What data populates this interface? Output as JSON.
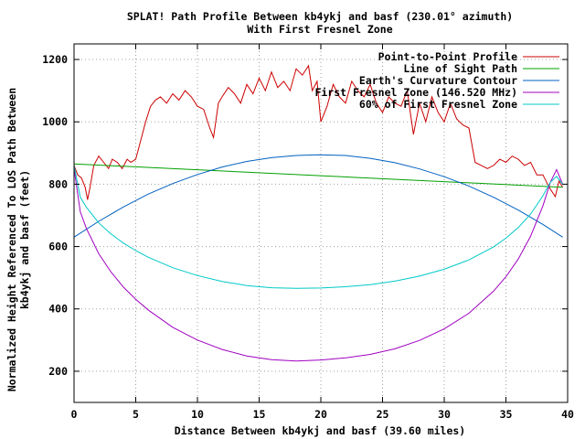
{
  "chart_data": {
    "type": "line",
    "title": "SPLAT! Path Profile Between kb4ykj and basf (230.01° azimuth)",
    "subtitle": "With First Fresnel Zone",
    "xlabel": "Distance Between kb4ykj and basf (39.60 miles)",
    "ylabel_line1": "Normalized Height Referenced To LOS Path Between",
    "ylabel_line2": "kb4ykj and basf (feet)",
    "xlim": [
      0,
      40
    ],
    "ylim": [
      100,
      1250
    ],
    "x_ticks": [
      0,
      5,
      10,
      15,
      20,
      25,
      30,
      35,
      40
    ],
    "y_ticks": [
      200,
      400,
      600,
      800,
      1000,
      1200
    ],
    "grid": true,
    "legend_position": "top-right",
    "series": [
      {
        "name": "Point-to-Point Profile",
        "color": "#cc0000",
        "x": [
          0,
          0.3,
          0.6,
          0.9,
          1.1,
          1.3,
          1.6,
          2,
          2.4,
          2.8,
          3.1,
          3.5,
          3.9,
          4.3,
          4.6,
          5,
          5.4,
          5.8,
          6.2,
          6.6,
          7,
          7.5,
          8,
          8.5,
          9,
          9.5,
          10,
          10.5,
          11,
          11.3,
          11.7,
          12,
          12.5,
          13,
          13.5,
          14,
          14.5,
          15,
          15.5,
          16,
          16.5,
          17,
          17.5,
          18,
          18.5,
          19,
          19.3,
          19.7,
          20,
          20.5,
          21,
          21.5,
          22,
          22.5,
          23,
          23.5,
          24,
          24.5,
          25,
          25.5,
          26,
          26.5,
          27,
          27.5,
          28,
          28.5,
          29,
          29.5,
          30,
          30.5,
          31,
          31.5,
          32,
          32.5,
          33,
          33.5,
          34,
          34.5,
          35,
          35.5,
          36,
          36.5,
          37,
          37.5,
          38,
          38.5,
          39,
          39.3,
          39.6
        ],
        "y": [
          860,
          830,
          820,
          790,
          750,
          790,
          860,
          890,
          870,
          850,
          880,
          870,
          850,
          880,
          870,
          880,
          940,
          1000,
          1050,
          1070,
          1080,
          1060,
          1090,
          1070,
          1100,
          1080,
          1050,
          1040,
          980,
          950,
          1060,
          1080,
          1110,
          1090,
          1060,
          1120,
          1090,
          1140,
          1100,
          1160,
          1110,
          1130,
          1100,
          1170,
          1150,
          1180,
          1100,
          1130,
          1000,
          1050,
          1120,
          1080,
          1060,
          1130,
          1100,
          1080,
          1120,
          1060,
          1030,
          1080,
          1060,
          1050,
          1100,
          960,
          1060,
          1000,
          1080,
          1030,
          1000,
          1060,
          1010,
          990,
          980,
          870,
          860,
          850,
          860,
          880,
          870,
          890,
          880,
          860,
          870,
          830,
          830,
          790,
          760,
          810,
          790
        ]
      },
      {
        "name": "Line of Sight Path",
        "color": "#00a000",
        "x": [
          0,
          39.6
        ],
        "y": [
          865,
          790
        ]
      },
      {
        "name": "Earth's Curvature Contour",
        "color": "#0060c0",
        "x": [
          0,
          2,
          4,
          6,
          8,
          10,
          12,
          14,
          16,
          18,
          19.8,
          22,
          24,
          26,
          28,
          30,
          32,
          34,
          36,
          38,
          39.6
        ],
        "y": [
          630,
          681,
          727,
          768,
          802,
          831,
          855,
          873,
          885,
          892,
          894,
          892,
          883,
          869,
          849,
          824,
          794,
          758,
          717,
          671,
          630
        ]
      },
      {
        "name": "First Fresnel Zone (146.520 MHz)",
        "color": "#a000c0",
        "x": [
          0,
          0.5,
          1,
          2,
          3,
          4,
          5,
          6,
          8,
          10,
          12,
          14,
          16,
          18,
          20,
          22,
          24,
          26,
          28,
          30,
          32,
          34,
          35,
          36,
          37,
          38,
          38.6,
          39.1,
          39.6
        ],
        "y": [
          850,
          712,
          658,
          577,
          518,
          470,
          431,
          397,
          341,
          300,
          270,
          249,
          237,
          233,
          236,
          243,
          254,
          272,
          299,
          336,
          386,
          457,
          503,
          560,
          633,
          731,
          806,
          847,
          800
        ]
      },
      {
        "name": "60% of First Fresnel Zone",
        "color": "#00c8c8",
        "x": [
          0,
          0.5,
          1,
          2,
          3,
          4,
          5,
          6,
          8,
          10,
          12,
          14,
          16,
          18,
          20,
          22,
          24,
          26,
          28,
          30,
          32,
          34,
          35,
          36,
          37,
          38,
          38.6,
          39.1,
          39.6
        ],
        "y": [
          860,
          759,
          726,
          676,
          640,
          611,
          587,
          566,
          532,
          507,
          488,
          475,
          468,
          466,
          467,
          471,
          478,
          489,
          505,
          527,
          557,
          599,
          627,
          661,
          704,
          763,
          806,
          825,
          800
        ]
      }
    ]
  }
}
